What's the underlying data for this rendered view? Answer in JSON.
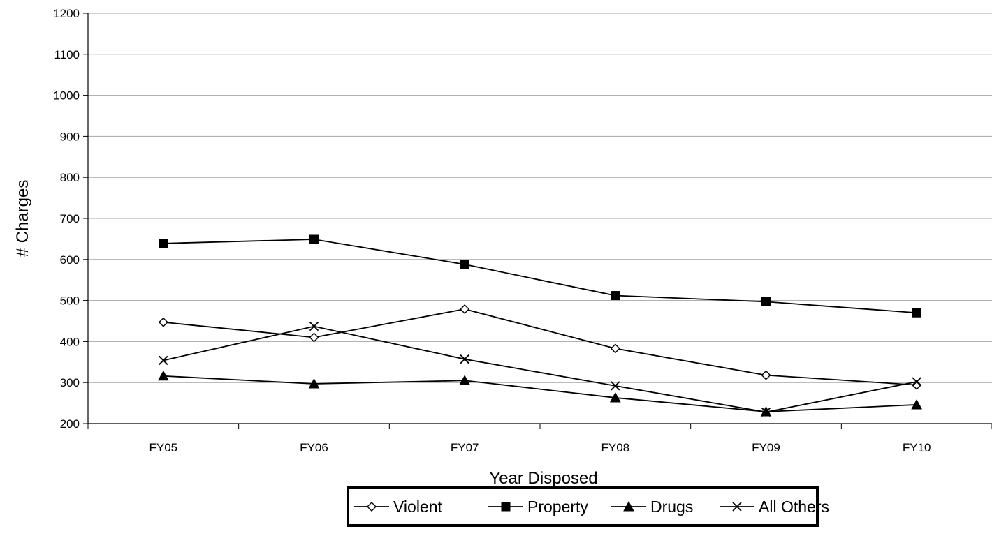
{
  "chart_data": {
    "type": "line",
    "title": "",
    "xlabel": "Year Disposed",
    "ylabel": "# Charges",
    "categories": [
      "FY05",
      "FY06",
      "FY07",
      "FY08",
      "FY09",
      "FY10"
    ],
    "ylim": [
      200,
      1200
    ],
    "yticks": [
      200,
      300,
      400,
      500,
      600,
      700,
      800,
      900,
      1000,
      1100,
      1200
    ],
    "grid": "horizontal",
    "legend_position": "bottom",
    "series": [
      {
        "name": "Violent",
        "marker": "diamond-open",
        "color": "#000000",
        "values": [
          447,
          410,
          479,
          383,
          318,
          294
        ]
      },
      {
        "name": "Property",
        "marker": "square-filled",
        "color": "#000000",
        "values": [
          639,
          649,
          588,
          512,
          497,
          470
        ]
      },
      {
        "name": "Drugs",
        "marker": "triangle-filled",
        "color": "#000000",
        "values": [
          316,
          297,
          305,
          263,
          229,
          246
        ]
      },
      {
        "name": "All Others",
        "marker": "x-cross",
        "color": "#000000",
        "values": [
          354,
          437,
          357,
          292,
          228,
          302
        ]
      }
    ]
  }
}
